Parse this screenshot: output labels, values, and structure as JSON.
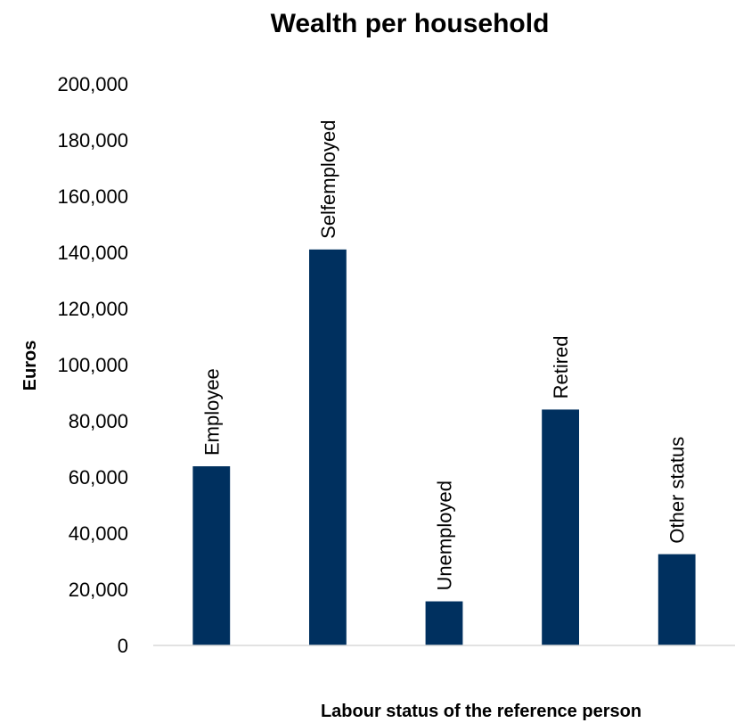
{
  "chart_data": {
    "type": "bar",
    "title": "Wealth per household",
    "xlabel": "Labour status of the reference person",
    "ylabel": "Euros",
    "categories": [
      "Employee",
      "Selfemployed",
      "Unemployed",
      "Retired",
      "Other status"
    ],
    "values": [
      63800,
      141000,
      15700,
      84000,
      32500
    ],
    "ylim": [
      0,
      200000
    ],
    "yticks": [
      "0",
      "20,000",
      "40,000",
      "60,000",
      "80,000",
      "100,000",
      "120,000",
      "140,000",
      "160,000",
      "180,000",
      "200,000"
    ],
    "grid": false,
    "legend": "none",
    "bar_color": "#00305f",
    "data_labels_show_category": true
  }
}
